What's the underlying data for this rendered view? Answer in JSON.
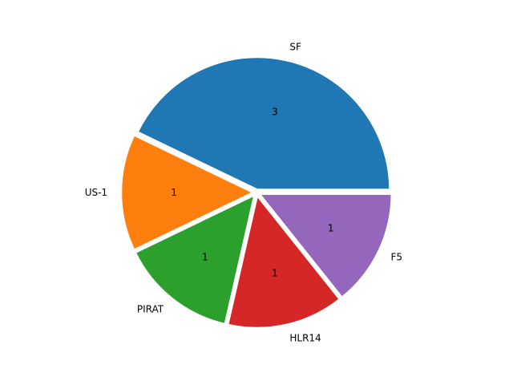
{
  "chart_data": {
    "type": "pie",
    "title": "",
    "slices": [
      {
        "label": "SF",
        "value": 3,
        "value_label": "3",
        "color": "#1f77b4"
      },
      {
        "label": "US-1",
        "value": 1,
        "value_label": "1",
        "color": "#ff7f0e"
      },
      {
        "label": "PIRAT",
        "value": 1,
        "value_label": "1",
        "color": "#2ca02c"
      },
      {
        "label": "HLR14",
        "value": 1,
        "value_label": "1",
        "color": "#d62728"
      },
      {
        "label": "F5",
        "value": 1,
        "value_label": "1",
        "color": "#9467bd"
      }
    ],
    "start_angle_deg": 0,
    "direction": "counterclockwise",
    "exploded": true,
    "slice_edge_color": "#ffffff"
  }
}
